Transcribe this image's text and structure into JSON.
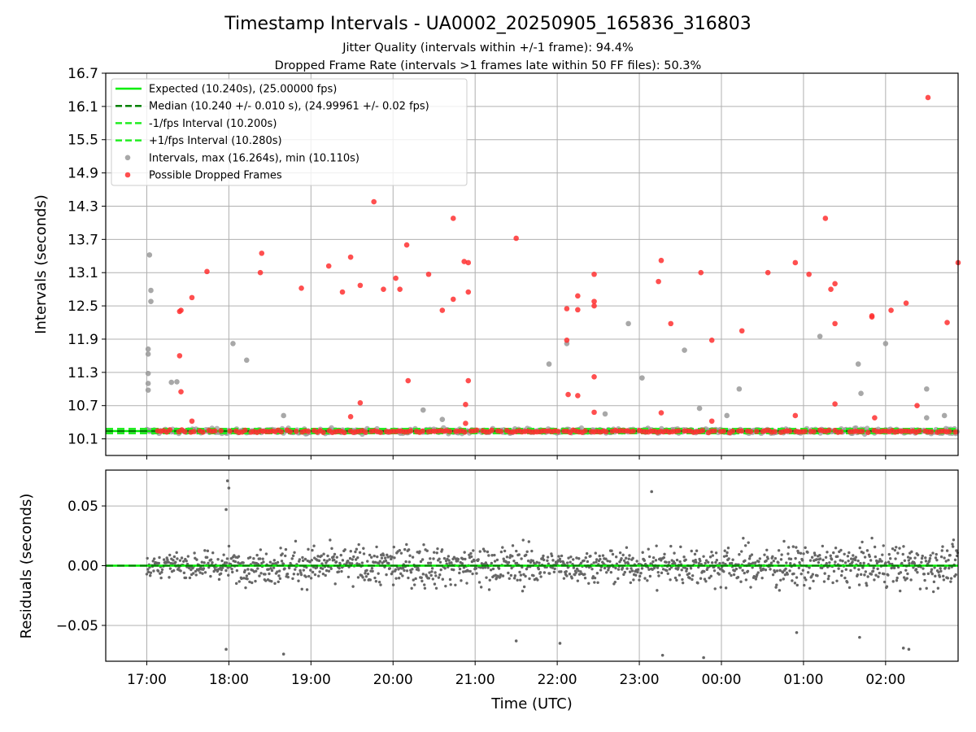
{
  "figure": {
    "title": "Timestamp Intervals - UA0002_20250905_165836_316803",
    "subtitle1": "Jitter Quality (intervals within +/-1 frame): 94.4%",
    "subtitle2": "Dropped Frame Rate (intervals >1 frames late within 50 FF files): 50.3%"
  },
  "colors": {
    "expected": "#00ee00",
    "median": "#008000",
    "bounds": "#22ee22",
    "intervals": "#999999",
    "dropped": "#ff3030",
    "residuals": "#666666",
    "grid": "#b0b0b0"
  },
  "chart_data": [
    {
      "type": "scatter",
      "panel": "top",
      "ylabel": "Intervals (seconds)",
      "ylim": [
        9.8,
        16.7
      ],
      "yticks": [
        "10.1",
        "10.7",
        "11.3",
        "11.9",
        "12.5",
        "13.1",
        "13.7",
        "14.3",
        "14.9",
        "15.5",
        "16.1",
        "16.7"
      ],
      "xlim": [
        "16:30",
        "02:53"
      ],
      "grid": true,
      "legend_position": "upper-left",
      "legend": [
        {
          "label": "Expected (10.240s), (25.00000 fps)",
          "kind": "line",
          "style": "solid",
          "color": "#00ee00"
        },
        {
          "label": "Median (10.240 +/- 0.010 s), (24.99961 +/- 0.02 fps)",
          "kind": "line",
          "style": "dashed",
          "color": "#008000"
        },
        {
          "label": "-1/fps Interval (10.200s)",
          "kind": "line",
          "style": "dashed",
          "color": "#22ee22"
        },
        {
          "label": "+1/fps Interval (10.280s)",
          "kind": "line",
          "style": "dashed",
          "color": "#22ee22"
        },
        {
          "label": "Intervals, max (16.264s), min (10.110s)",
          "kind": "marker",
          "color": "#999999"
        },
        {
          "label": "Possible Dropped Frames",
          "kind": "marker",
          "color": "#ff3030"
        }
      ],
      "lines": {
        "expected": 10.24,
        "median": 10.24,
        "lower": 10.2,
        "upper": 10.28
      },
      "dropped_frames": [
        [
          "17:24",
          12.4
        ],
        [
          "17:25",
          12.42
        ],
        [
          "17:24",
          11.6
        ],
        [
          "17:25",
          10.95
        ],
        [
          "17:33",
          12.65
        ],
        [
          "17:33",
          10.42
        ],
        [
          "17:44",
          13.12
        ],
        [
          "18:23",
          13.1
        ],
        [
          "18:24",
          13.45
        ],
        [
          "18:53",
          12.82
        ],
        [
          "19:13",
          13.22
        ],
        [
          "19:23",
          12.75
        ],
        [
          "19:29",
          13.38
        ],
        [
          "19:29",
          10.5
        ],
        [
          "19:36",
          12.87
        ],
        [
          "19:36",
          10.75
        ],
        [
          "19:46",
          14.38
        ],
        [
          "19:53",
          12.8
        ],
        [
          "20:02",
          13.0
        ],
        [
          "20:05",
          12.8
        ],
        [
          "20:10",
          13.6
        ],
        [
          "20:11",
          11.15
        ],
        [
          "20:26",
          13.07
        ],
        [
          "20:36",
          12.42
        ],
        [
          "20:44",
          14.08
        ],
        [
          "20:44",
          12.62
        ],
        [
          "20:52",
          13.3
        ],
        [
          "20:55",
          13.28
        ],
        [
          "20:55",
          12.75
        ],
        [
          "20:55",
          11.15
        ],
        [
          "20:53",
          10.72
        ],
        [
          "20:53",
          10.38
        ],
        [
          "21:30",
          13.72
        ],
        [
          "22:07",
          12.45
        ],
        [
          "22:07",
          11.88
        ],
        [
          "22:08",
          10.9
        ],
        [
          "22:15",
          12.68
        ],
        [
          "22:15",
          12.43
        ],
        [
          "22:15",
          10.88
        ],
        [
          "22:27",
          13.07
        ],
        [
          "22:27",
          12.58
        ],
        [
          "22:27",
          12.5
        ],
        [
          "22:27",
          11.22
        ],
        [
          "22:27",
          10.58
        ],
        [
          "23:14",
          12.94
        ],
        [
          "23:16",
          13.32
        ],
        [
          "23:16",
          10.57
        ],
        [
          "23:23",
          12.18
        ],
        [
          "23:45",
          13.1
        ],
        [
          "23:53",
          11.88
        ],
        [
          "23:53",
          10.42
        ],
        [
          "00:15",
          12.05
        ],
        [
          "00:34",
          13.1
        ],
        [
          "00:54",
          13.28
        ],
        [
          "00:54",
          10.52
        ],
        [
          "01:04",
          13.07
        ],
        [
          "01:16",
          14.08
        ],
        [
          "01:20",
          12.8
        ],
        [
          "01:23",
          12.9
        ],
        [
          "01:23",
          12.18
        ],
        [
          "01:23",
          10.73
        ],
        [
          "01:50",
          12.32
        ],
        [
          "01:50",
          12.3
        ],
        [
          "01:52",
          10.48
        ],
        [
          "02:04",
          12.42
        ],
        [
          "02:15",
          12.55
        ],
        [
          "02:23",
          10.7
        ],
        [
          "02:31",
          16.26
        ],
        [
          "02:45",
          12.2
        ],
        [
          "02:53",
          13.28
        ]
      ],
      "outlier_intervals": [
        [
          "17:01",
          11.72
        ],
        [
          "17:01",
          11.63
        ],
        [
          "17:01",
          11.28
        ],
        [
          "17:01",
          11.1
        ],
        [
          "17:01",
          10.98
        ],
        [
          "17:02",
          13.42
        ],
        [
          "17:03",
          12.78
        ],
        [
          "17:03",
          12.58
        ],
        [
          "17:18",
          11.12
        ],
        [
          "17:22",
          11.13
        ],
        [
          "18:03",
          11.82
        ],
        [
          "18:13",
          11.52
        ],
        [
          "18:40",
          10.52
        ],
        [
          "20:22",
          10.62
        ],
        [
          "20:36",
          10.45
        ],
        [
          "21:54",
          11.45
        ],
        [
          "22:07",
          11.82
        ],
        [
          "22:35",
          10.55
        ],
        [
          "22:52",
          12.18
        ],
        [
          "23:02",
          11.2
        ],
        [
          "23:33",
          11.7
        ],
        [
          "23:44",
          10.65
        ],
        [
          "00:04",
          10.52
        ],
        [
          "00:13",
          11.0
        ],
        [
          "01:12",
          11.95
        ],
        [
          "01:40",
          11.45
        ],
        [
          "01:42",
          10.92
        ],
        [
          "02:00",
          11.82
        ],
        [
          "02:30",
          11.0
        ],
        [
          "02:30",
          10.48
        ],
        [
          "02:43",
          10.52
        ]
      ]
    },
    {
      "type": "scatter",
      "panel": "bottom",
      "ylabel": "Residuals (seconds)",
      "xlabel": "Time (UTC)",
      "ylim": [
        -0.08,
        0.08
      ],
      "yticks": [
        "0.05",
        "0.00",
        "−0.05"
      ],
      "xticks": [
        "17:00",
        "18:00",
        "19:00",
        "20:00",
        "21:00",
        "22:00",
        "23:00",
        "00:00",
        "01:00",
        "02:00"
      ],
      "xlim": [
        "16:30",
        "02:53"
      ],
      "grid": true,
      "zero_line": 0.0,
      "notable_residuals": [
        [
          "17:59",
          0.071
        ],
        [
          "18:00",
          0.065
        ],
        [
          "17:58",
          0.047
        ],
        [
          "23:09",
          0.062
        ],
        [
          "17:58",
          -0.07
        ],
        [
          "18:40",
          -0.074
        ],
        [
          "23:17",
          -0.075
        ],
        [
          "23:47",
          -0.077
        ],
        [
          "21:30",
          -0.063
        ],
        [
          "22:02",
          -0.065
        ],
        [
          "00:55",
          -0.056
        ],
        [
          "01:41",
          -0.06
        ],
        [
          "02:13",
          -0.069
        ],
        [
          "02:17",
          -0.07
        ]
      ]
    }
  ]
}
